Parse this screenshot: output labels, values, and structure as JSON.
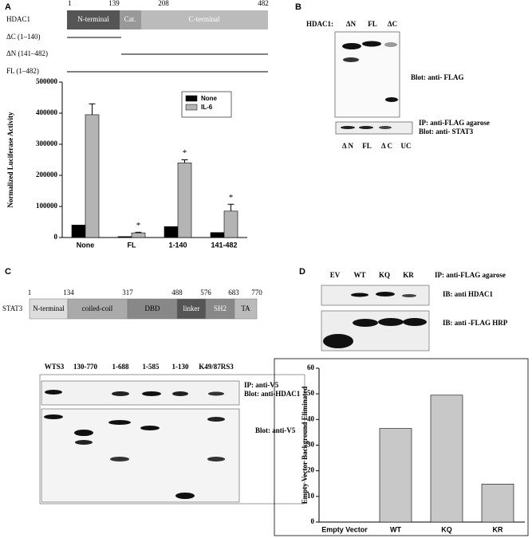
{
  "panels": {
    "a": "A",
    "b": "B",
    "c": "C",
    "d": "D"
  },
  "panel_a": {
    "protein": "HDAC1",
    "positions": [
      1,
      139,
      208,
      482
    ],
    "domains": [
      "N-terminal",
      "Cat.",
      "C-terminal"
    ],
    "constructs": [
      "ΔC (1–140)",
      "ΔN (141–482)",
      "FL (1–482)"
    ]
  },
  "panel_b": {
    "label": "HDAC1:",
    "lanes_top": [
      "ΔN",
      "FL",
      "ΔC"
    ],
    "blot_1": "Blot: anti- FLAG",
    "blot_2": [
      "IP: anti-FLAG agarose",
      "Blot: anti- STAT3"
    ],
    "lanes_bottom": [
      "Δ N",
      "FL",
      "Δ C",
      "UC"
    ]
  },
  "panel_c": {
    "protein": "STAT3",
    "positions": [
      1,
      134,
      317,
      488,
      576,
      683,
      770
    ],
    "domains": [
      "N-terminal",
      "coiled-coil",
      "DBD",
      "linker",
      "SH2",
      "TA"
    ],
    "lanes": [
      "WTS3",
      "130-770",
      "1-688",
      "1-585",
      "1-130",
      "K49/87RS3"
    ],
    "blot_1": [
      "IP: anti-V5",
      "Blot: anti-HDAC1"
    ],
    "blot_2": "Blot: anti-V5"
  },
  "panel_d": {
    "lanes": [
      "EV",
      "WT",
      "KQ",
      "KR"
    ],
    "ip": "IP: anti-FLAG agarose",
    "blot_1": "IB: anti HDAC1",
    "blot_2": "IB: anti -FLAG HRP"
  },
  "chart_data": [
    {
      "type": "bar",
      "ylabel": "Normalized Luciferase Activity",
      "categories": [
        "None",
        "FL",
        "1-140",
        "141-482"
      ],
      "series": [
        {
          "name": "None",
          "color": "#000000",
          "values": [
            40000,
            3000,
            35000,
            16000
          ]
        },
        {
          "name": "IL-6",
          "color": "#b4b4b4",
          "values": [
            395000,
            15000,
            240000,
            85000
          ],
          "errors": [
            35000,
            2000,
            10000,
            22000
          ]
        }
      ],
      "ylim": [
        0,
        500000
      ],
      "yticks": [
        0,
        100000,
        200000,
        300000,
        400000,
        500000
      ],
      "legend": "upper right",
      "annotations": [
        {
          "text": "*",
          "x": "FL"
        },
        {
          "text": "*",
          "x": "1-140"
        },
        {
          "text": "*",
          "x": "141-482"
        }
      ]
    },
    {
      "type": "bar",
      "ylabel": "Empty Vector Background Eliminated",
      "categories": [
        "Empty Vector",
        "WT",
        "KQ",
        "KR"
      ],
      "values": [
        0,
        36.5,
        49.5,
        14.8
      ],
      "color": "#c8c8c8",
      "ylim": [
        0,
        60
      ],
      "yticks": [
        0,
        10,
        20,
        30,
        40,
        50,
        60
      ]
    }
  ]
}
